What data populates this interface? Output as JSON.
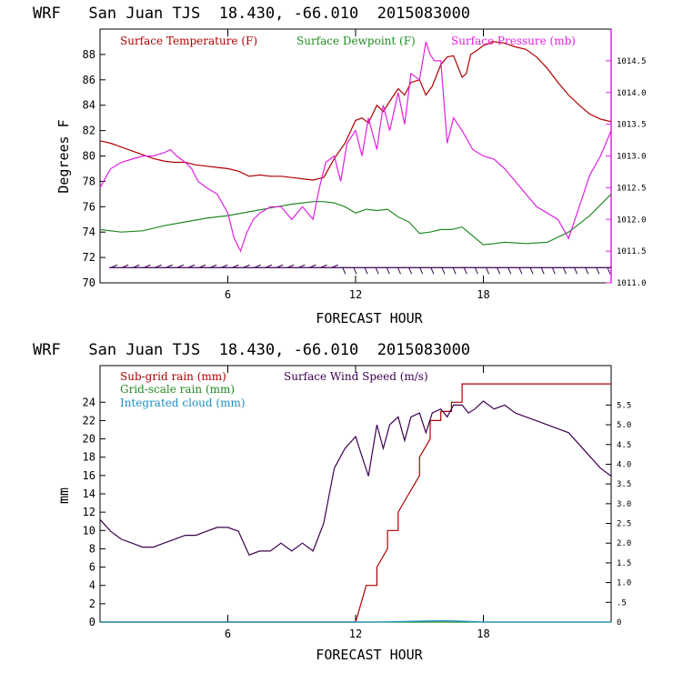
{
  "chart_data": [
    {
      "type": "line",
      "title": "WRF   San Juan TJS  18.430, -66.010  2015083000",
      "xlabel": "FORECAST HOUR",
      "ylabel": "Degrees F",
      "xlim": [
        0,
        24
      ],
      "ylim": [
        70,
        90
      ],
      "xticks": [
        "6",
        "12",
        "18"
      ],
      "yticks": [
        "70",
        "72",
        "74",
        "76",
        "78",
        "80",
        "82",
        "84",
        "86",
        "88"
      ],
      "y2lim": [
        1011.0,
        1015.0
      ],
      "y2ticks": [
        "1011.0",
        "1011.5",
        "1012.0",
        "1012.5",
        "1013.0",
        "1013.5",
        "1014.0",
        "1014.5"
      ],
      "legend": [
        "Surface Temperature (F)",
        "Surface Dewpoint (F)",
        "Surface Pressure (mb)"
      ],
      "colors": {
        "temperature": "#b00000",
        "dewpoint": "#228b22",
        "pressure": "#e020e0",
        "wind": "#3c0050"
      },
      "series": [
        {
          "name": "Surface Temperature (F)",
          "axis": "left",
          "x": [
            0,
            0.5,
            1,
            1.5,
            2,
            2.5,
            3,
            3.5,
            4,
            4.5,
            5,
            5.5,
            6,
            6.5,
            7,
            7.5,
            8,
            8.5,
            9,
            9.5,
            10,
            10.5,
            11,
            11.5,
            12,
            12.3,
            12.6,
            13,
            13.3,
            13.6,
            14,
            14.3,
            14.6,
            15,
            15.3,
            15.6,
            16,
            16.3,
            16.6,
            17,
            17.2,
            17.4,
            17.6,
            18,
            18.5,
            19,
            19.5,
            20,
            20.5,
            21,
            21.5,
            22,
            22.5,
            23,
            23.5,
            24
          ],
          "values": [
            81.2,
            81.0,
            80.7,
            80.4,
            80.1,
            79.8,
            79.6,
            79.5,
            79.5,
            79.3,
            79.2,
            79.1,
            79.0,
            78.8,
            78.4,
            78.5,
            78.4,
            78.4,
            78.3,
            78.2,
            78.1,
            78.3,
            79.8,
            81.0,
            82.8,
            83.0,
            82.6,
            84.0,
            83.5,
            84.3,
            85.3,
            84.8,
            85.8,
            86.0,
            84.8,
            85.5,
            87.2,
            87.8,
            87.9,
            86.2,
            86.5,
            88.0,
            88.2,
            88.7,
            89.0,
            88.9,
            88.6,
            88.4,
            87.8,
            86.9,
            85.8,
            84.8,
            84.0,
            83.3,
            82.9,
            82.7
          ]
        },
        {
          "name": "Surface Dewpoint (F)",
          "axis": "left",
          "x": [
            0,
            1,
            2,
            3,
            4,
            5,
            6,
            7,
            8,
            9,
            10,
            10.5,
            11,
            11.5,
            12,
            12.5,
            13,
            13.5,
            14,
            14.5,
            15,
            15.5,
            16,
            16.5,
            17,
            17.5,
            18,
            18.5,
            19,
            20,
            21,
            22,
            23,
            24
          ],
          "values": [
            74.2,
            74.0,
            74.1,
            74.5,
            74.8,
            75.1,
            75.3,
            75.6,
            75.9,
            76.2,
            76.4,
            76.4,
            76.3,
            76.0,
            75.5,
            75.8,
            75.7,
            75.8,
            75.2,
            74.8,
            73.9,
            74.0,
            74.2,
            74.2,
            74.4,
            73.7,
            73.0,
            73.1,
            73.2,
            73.1,
            73.2,
            74.0,
            75.3,
            77.0
          ]
        },
        {
          "name": "Surface Pressure (mb)",
          "axis": "right",
          "x": [
            0,
            0.5,
            1,
            1.5,
            2,
            2.5,
            3,
            3.3,
            3.6,
            4,
            4.3,
            4.6,
            5,
            5.5,
            6,
            6.3,
            6.6,
            6.9,
            7.2,
            7.5,
            8,
            8.5,
            9,
            9.5,
            10,
            10.3,
            10.6,
            11,
            11.3,
            11.6,
            12,
            12.3,
            12.6,
            13,
            13.3,
            13.6,
            14,
            14.3,
            14.6,
            15,
            15.3,
            15.5,
            15.7,
            16,
            16.3,
            16.6,
            17,
            17.5,
            18,
            18.5,
            19,
            19.5,
            20,
            20.5,
            21,
            21.5,
            22,
            22.5,
            23,
            23.5,
            24
          ],
          "values": [
            1012.5,
            1012.8,
            1012.9,
            1012.95,
            1013.0,
            1013.0,
            1013.05,
            1013.1,
            1013.0,
            1012.9,
            1012.8,
            1012.6,
            1012.5,
            1012.4,
            1012.1,
            1011.7,
            1011.5,
            1011.8,
            1012.0,
            1012.1,
            1012.2,
            1012.2,
            1012.0,
            1012.2,
            1012.0,
            1012.5,
            1012.9,
            1013.0,
            1012.6,
            1013.2,
            1013.4,
            1013.0,
            1013.6,
            1013.1,
            1013.8,
            1013.4,
            1014.0,
            1013.5,
            1014.3,
            1014.2,
            1014.8,
            1014.6,
            1014.5,
            1014.5,
            1013.2,
            1013.6,
            1013.4,
            1013.1,
            1013.0,
            1012.95,
            1012.8,
            1012.6,
            1012.4,
            1012.2,
            1012.1,
            1012.0,
            1011.7,
            1012.2,
            1012.7,
            1013.0,
            1013.4
          ]
        }
      ]
    },
    {
      "type": "line",
      "title": "WRF   San Juan TJS  18.430, -66.010  2015083000",
      "xlabel": "FORECAST HOUR",
      "ylabel": "mm",
      "xlim": [
        0,
        24
      ],
      "ylim": [
        0,
        28
      ],
      "xticks": [
        "6",
        "12",
        "18"
      ],
      "yticks": [
        "0",
        "2",
        "4",
        "6",
        "8",
        "10",
        "12",
        "14",
        "16",
        "18",
        "20",
        "22",
        "24"
      ],
      "y2lim": [
        0,
        6.5
      ],
      "y2ticks": [
        "0",
        ".5",
        "1.0",
        "1.5",
        "2.0",
        "2.5",
        "3.0",
        "3.5",
        "4.0",
        "4.5",
        "5.0",
        "5.5"
      ],
      "legend": [
        "Sub-grid rain (mm)",
        "Grid-scale rain (mm)",
        "Integrated cloud (mm)",
        "Surface Wind Speed (m/s)"
      ],
      "colors": {
        "subgrid": "#b00000",
        "gridscale": "#228b22",
        "cloud": "#1e90c8",
        "wind": "#3c0050"
      },
      "series": [
        {
          "name": "Sub-grid rain (mm)",
          "axis": "left",
          "x": [
            0,
            12,
            12.5,
            12.5,
            13,
            13,
            13.5,
            13.5,
            14,
            14,
            14.5,
            14.5,
            15,
            15,
            15.5,
            15.5,
            16,
            16,
            16.5,
            16.5,
            17,
            17,
            24
          ],
          "values": [
            0,
            0,
            4,
            4,
            4,
            6,
            8,
            10,
            10,
            12,
            14,
            14,
            16,
            18,
            20,
            22,
            22,
            23,
            23,
            24,
            24,
            26,
            26
          ]
        },
        {
          "name": "Grid-scale rain (mm)",
          "axis": "left",
          "x": [
            0,
            24
          ],
          "values": [
            0,
            0
          ]
        },
        {
          "name": "Integrated cloud (mm)",
          "axis": "left",
          "x": [
            0,
            13,
            14,
            15,
            16,
            17,
            18,
            24
          ],
          "values": [
            0,
            0,
            0.05,
            0.1,
            0.15,
            0.1,
            0,
            0
          ]
        },
        {
          "name": "Surface Wind Speed (m/s)",
          "axis": "right",
          "x": [
            0,
            0.5,
            1,
            1.5,
            2,
            2.5,
            3,
            3.5,
            4,
            4.5,
            5,
            5.5,
            6,
            6.5,
            7,
            7.5,
            8,
            8.5,
            9,
            9.5,
            10,
            10.5,
            11,
            11.5,
            12,
            12.3,
            12.6,
            13,
            13.3,
            13.6,
            14,
            14.3,
            14.6,
            15,
            15.3,
            15.6,
            16,
            16.3,
            16.6,
            17,
            17.3,
            17.6,
            18,
            18.5,
            19,
            19.5,
            20,
            20.5,
            21,
            21.5,
            22,
            22.5,
            23,
            23.5,
            24
          ],
          "values": [
            2.6,
            2.3,
            2.1,
            2.0,
            1.9,
            1.9,
            2.0,
            2.1,
            2.2,
            2.2,
            2.3,
            2.4,
            2.4,
            2.3,
            1.7,
            1.8,
            1.8,
            2.0,
            1.8,
            2.0,
            1.8,
            2.5,
            3.9,
            4.4,
            4.7,
            4.2,
            3.7,
            5.0,
            4.4,
            5.0,
            5.2,
            4.6,
            5.2,
            5.3,
            4.8,
            5.3,
            5.4,
            5.2,
            5.5,
            5.5,
            5.3,
            5.4,
            5.6,
            5.4,
            5.5,
            5.3,
            5.2,
            5.1,
            5.0,
            4.9,
            4.8,
            4.5,
            4.2,
            3.9,
            3.7
          ]
        }
      ]
    }
  ]
}
